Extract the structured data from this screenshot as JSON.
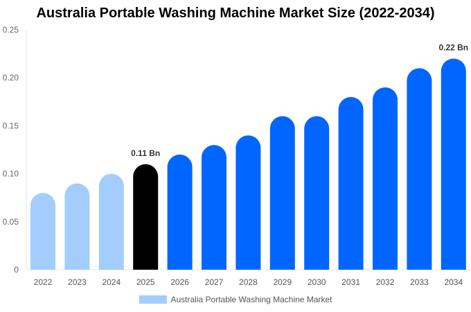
{
  "chart_data": {
    "type": "bar",
    "title": "Australia Portable Washing Machine Market Size (2022-2034)",
    "categories": [
      "2022",
      "2023",
      "2024",
      "2025",
      "2026",
      "2027",
      "2028",
      "2029",
      "2030",
      "2031",
      "2032",
      "2033",
      "2034"
    ],
    "series": [
      {
        "name": "Australia Portable Washing Machine Market",
        "values": [
          0.08,
          0.09,
          0.1,
          0.11,
          0.12,
          0.13,
          0.14,
          0.16,
          0.16,
          0.18,
          0.19,
          0.21,
          0.22
        ]
      }
    ],
    "ylim": [
      0,
      0.25
    ],
    "yticks": [
      "0",
      "0.05",
      "0.10",
      "0.15",
      "0.20",
      "0.25"
    ],
    "data_labels": {
      "3": "0.11 Bn",
      "12": "0.22 Bn"
    },
    "legend": "bottom",
    "grid": false,
    "colors": {
      "historical": "#a3cdfd",
      "current": "#000000",
      "forecast": "#0066ff"
    }
  }
}
